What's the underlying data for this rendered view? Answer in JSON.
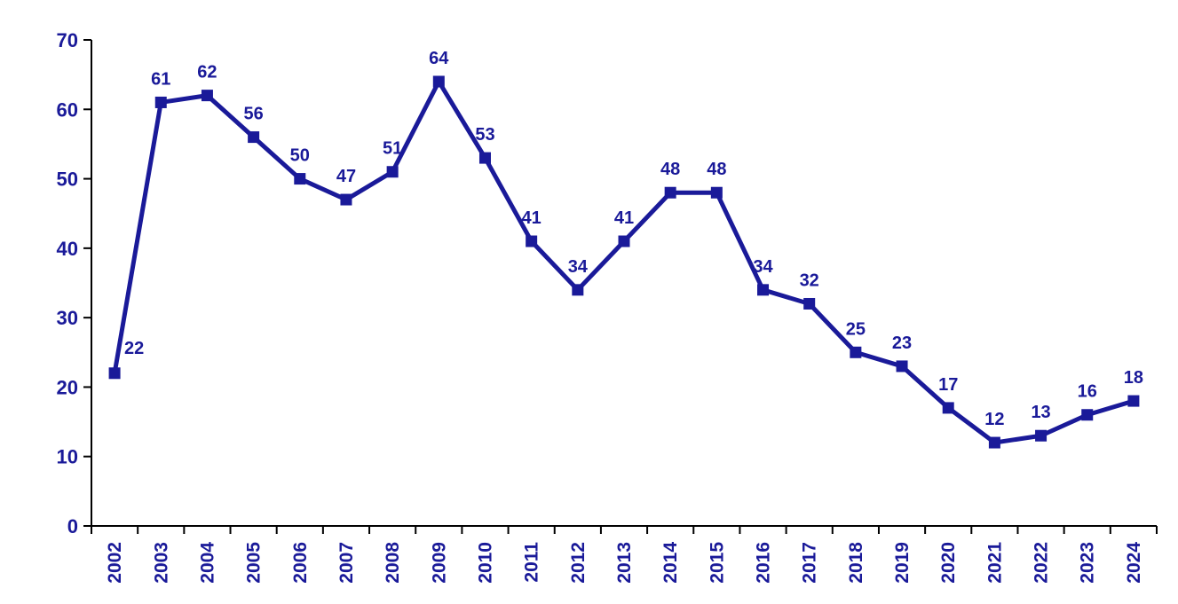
{
  "chart_data": {
    "type": "line",
    "title": "",
    "xlabel": "",
    "ylabel": "",
    "categories": [
      "2002",
      "2003",
      "2004",
      "2005",
      "2006",
      "2007",
      "2008",
      "2009",
      "2010",
      "2011",
      "2012",
      "2013",
      "2014",
      "2015",
      "2016",
      "2017",
      "2018",
      "2019",
      "2020",
      "2021",
      "2022",
      "2023",
      "2024"
    ],
    "values": [
      22,
      61,
      62,
      56,
      50,
      47,
      51,
      64,
      53,
      41,
      34,
      41,
      48,
      48,
      34,
      32,
      25,
      23,
      17,
      12,
      13,
      16,
      18
    ],
    "y_ticks": [
      0,
      10,
      20,
      30,
      40,
      50,
      60,
      70
    ],
    "ylim": [
      0,
      70
    ],
    "grid": false,
    "legend": false,
    "data_labels_shown": true,
    "marker_shape": "square",
    "x_label_rotation_degrees": -90,
    "colors": {
      "line": "#1A1A99",
      "marker": "#1A1A99",
      "data_label": "#1A1A99",
      "axis_tick_label": "#1A1A99",
      "axis_line": "#000000",
      "background": "#FFFFFF"
    }
  }
}
